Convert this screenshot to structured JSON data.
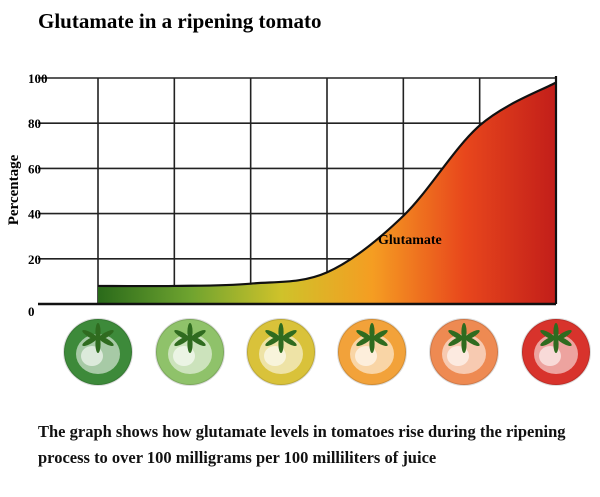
{
  "chart_data": {
    "type": "area",
    "title": "Glutamate in a ripening tomato",
    "ylabel": "Percentage",
    "xlabel": "",
    "ylim": [
      0,
      100
    ],
    "yticks": [
      0,
      20,
      40,
      60,
      80,
      100
    ],
    "x": [
      1,
      2,
      3,
      4,
      5,
      6,
      7
    ],
    "series": [
      {
        "name": "Glutamate",
        "values": [
          8,
          8,
          9,
          14,
          39,
          79,
          98
        ]
      }
    ],
    "grid": true,
    "categories": [
      "green",
      "light green",
      "yellow",
      "orange",
      "orange-red",
      "red"
    ],
    "gradient_colors": [
      "#2a6a1a",
      "#6ea32f",
      "#cfc22a",
      "#f59d22",
      "#e8471c",
      "#c21e1a"
    ],
    "category_colors": [
      "#3d8a3a",
      "#8fc26a",
      "#d9c23a",
      "#f2a23a",
      "#ee8a52",
      "#d8332c"
    ]
  },
  "caption": "The graph shows how glutamate levels in tomatoes rise during the ripening process to over 100 milligrams per 100 milliliters of juice"
}
